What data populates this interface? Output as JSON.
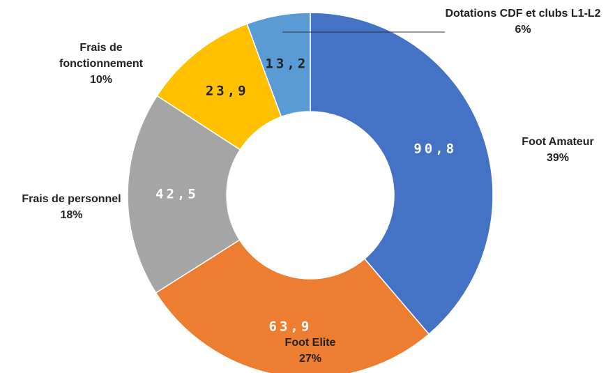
{
  "chart_data": {
    "type": "donut",
    "categories": [
      "Foot Amateur",
      "Foot Elite",
      "Frais de personnel",
      "Frais de fonctionnement",
      "Dotations CDF et clubs L1-L2"
    ],
    "values": [
      90.8,
      63.9,
      42.5,
      23.9,
      13.2
    ],
    "value_labels": [
      "90,8",
      "63,9",
      "42,5",
      "23,9",
      "13,2"
    ],
    "percent_labels": [
      "39%",
      "27%",
      "18%",
      "10%",
      "6%"
    ],
    "colors": [
      "#4472c4",
      "#ed7d31",
      "#a5a5a5",
      "#ffc000",
      "#5b9bd5"
    ]
  }
}
